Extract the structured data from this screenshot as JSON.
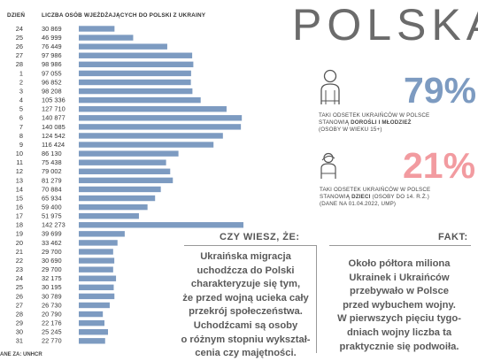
{
  "header": {
    "col_day": "DZIEŃ",
    "col_count": "LICZBA OSÓB WJEŻDŻAJĄCYCH DO POLSKI Z UKRAINY"
  },
  "title": "POLSKA",
  "stat1": {
    "percent": "79%",
    "line1": "TAKI ODSETEK UKRAIŃCÓW W POLSCE",
    "line2_pre": "STANOWIĄ ",
    "line2_bold": "DOROŚLI I MŁODZIEŻ",
    "line3": "(OSOBY W WIEKU 15+)",
    "color": "#7d9bc1"
  },
  "stat2": {
    "percent": "21%",
    "line1": "TAKI ODSETEK UKRAIŃCÓW W POLSCE",
    "line2_pre": "STANOWIĄ ",
    "line2_bold": "DZIECI",
    "line2_post": " (OSOBY DO 14. R.Ż.)",
    "line3": "(DANE NA 01.04.2022, UMP)",
    "color": "#f29ba0"
  },
  "box1": {
    "title": "CZY WIESZ, ŻE:",
    "lines": [
      "Ukraińska migracja",
      "uchodźcza do Polski",
      "charakteryzuje się tym,",
      "że przed wojną ucieka cały",
      "przekrój społeczeństwa.",
      "Uchodźcami są osoby",
      "o różnym stopniu wykształ-",
      "cenia czy majętności."
    ]
  },
  "box2": {
    "title": "FAKT:",
    "lines": [
      "Około półtora miliona",
      "Ukrainek i Ukraińców",
      "przebywało w Polsce",
      "przed wybuchem wojny.",
      "W pierwszych pięciu tygo-",
      "dniach wojny liczba ta",
      "praktycznie się podwoiła."
    ]
  },
  "source": "ANE ZA: UNHCR",
  "chart_data": {
    "type": "bar",
    "orientation": "horizontal",
    "bar_color": "#7d9bc1",
    "categories": [
      "24",
      "25",
      "26",
      "27",
      "28",
      "1",
      "2",
      "3",
      "4",
      "5",
      "6",
      "7",
      "8",
      "9",
      "10",
      "11",
      "12",
      "13",
      "14",
      "15",
      "16",
      "17",
      "18",
      "19",
      "20",
      "21",
      "22",
      "23",
      "24",
      "25",
      "26",
      "27",
      "28",
      "29",
      "30",
      "31"
    ],
    "values": [
      30869,
      46999,
      76449,
      97986,
      98986,
      97055,
      96852,
      98208,
      105336,
      127710,
      140877,
      140085,
      124542,
      116424,
      86130,
      75438,
      79002,
      81279,
      70884,
      65934,
      59400,
      51975,
      142273,
      39699,
      33462,
      29700,
      30690,
      29700,
      32175,
      30195,
      30789,
      26730,
      20790,
      22176,
      25245,
      22770
    ],
    "value_labels": [
      "30 869",
      "46 999",
      "76 449",
      "97 986",
      "98 986",
      "97 055",
      "96 852",
      "98 208",
      "105 336",
      "127 710",
      "140 877",
      "140 085",
      "124 542",
      "116 424",
      "86 130",
      "75 438",
      "79 002",
      "81 279",
      "70 884",
      "65 934",
      "59 400",
      "51 975",
      "142 273",
      "39 699",
      "33 462",
      "29 700",
      "30 690",
      "29 700",
      "32 175",
      "30 195",
      "30 789",
      "26 730",
      "20 790",
      "22 176",
      "25 245",
      "22 770"
    ]
  }
}
